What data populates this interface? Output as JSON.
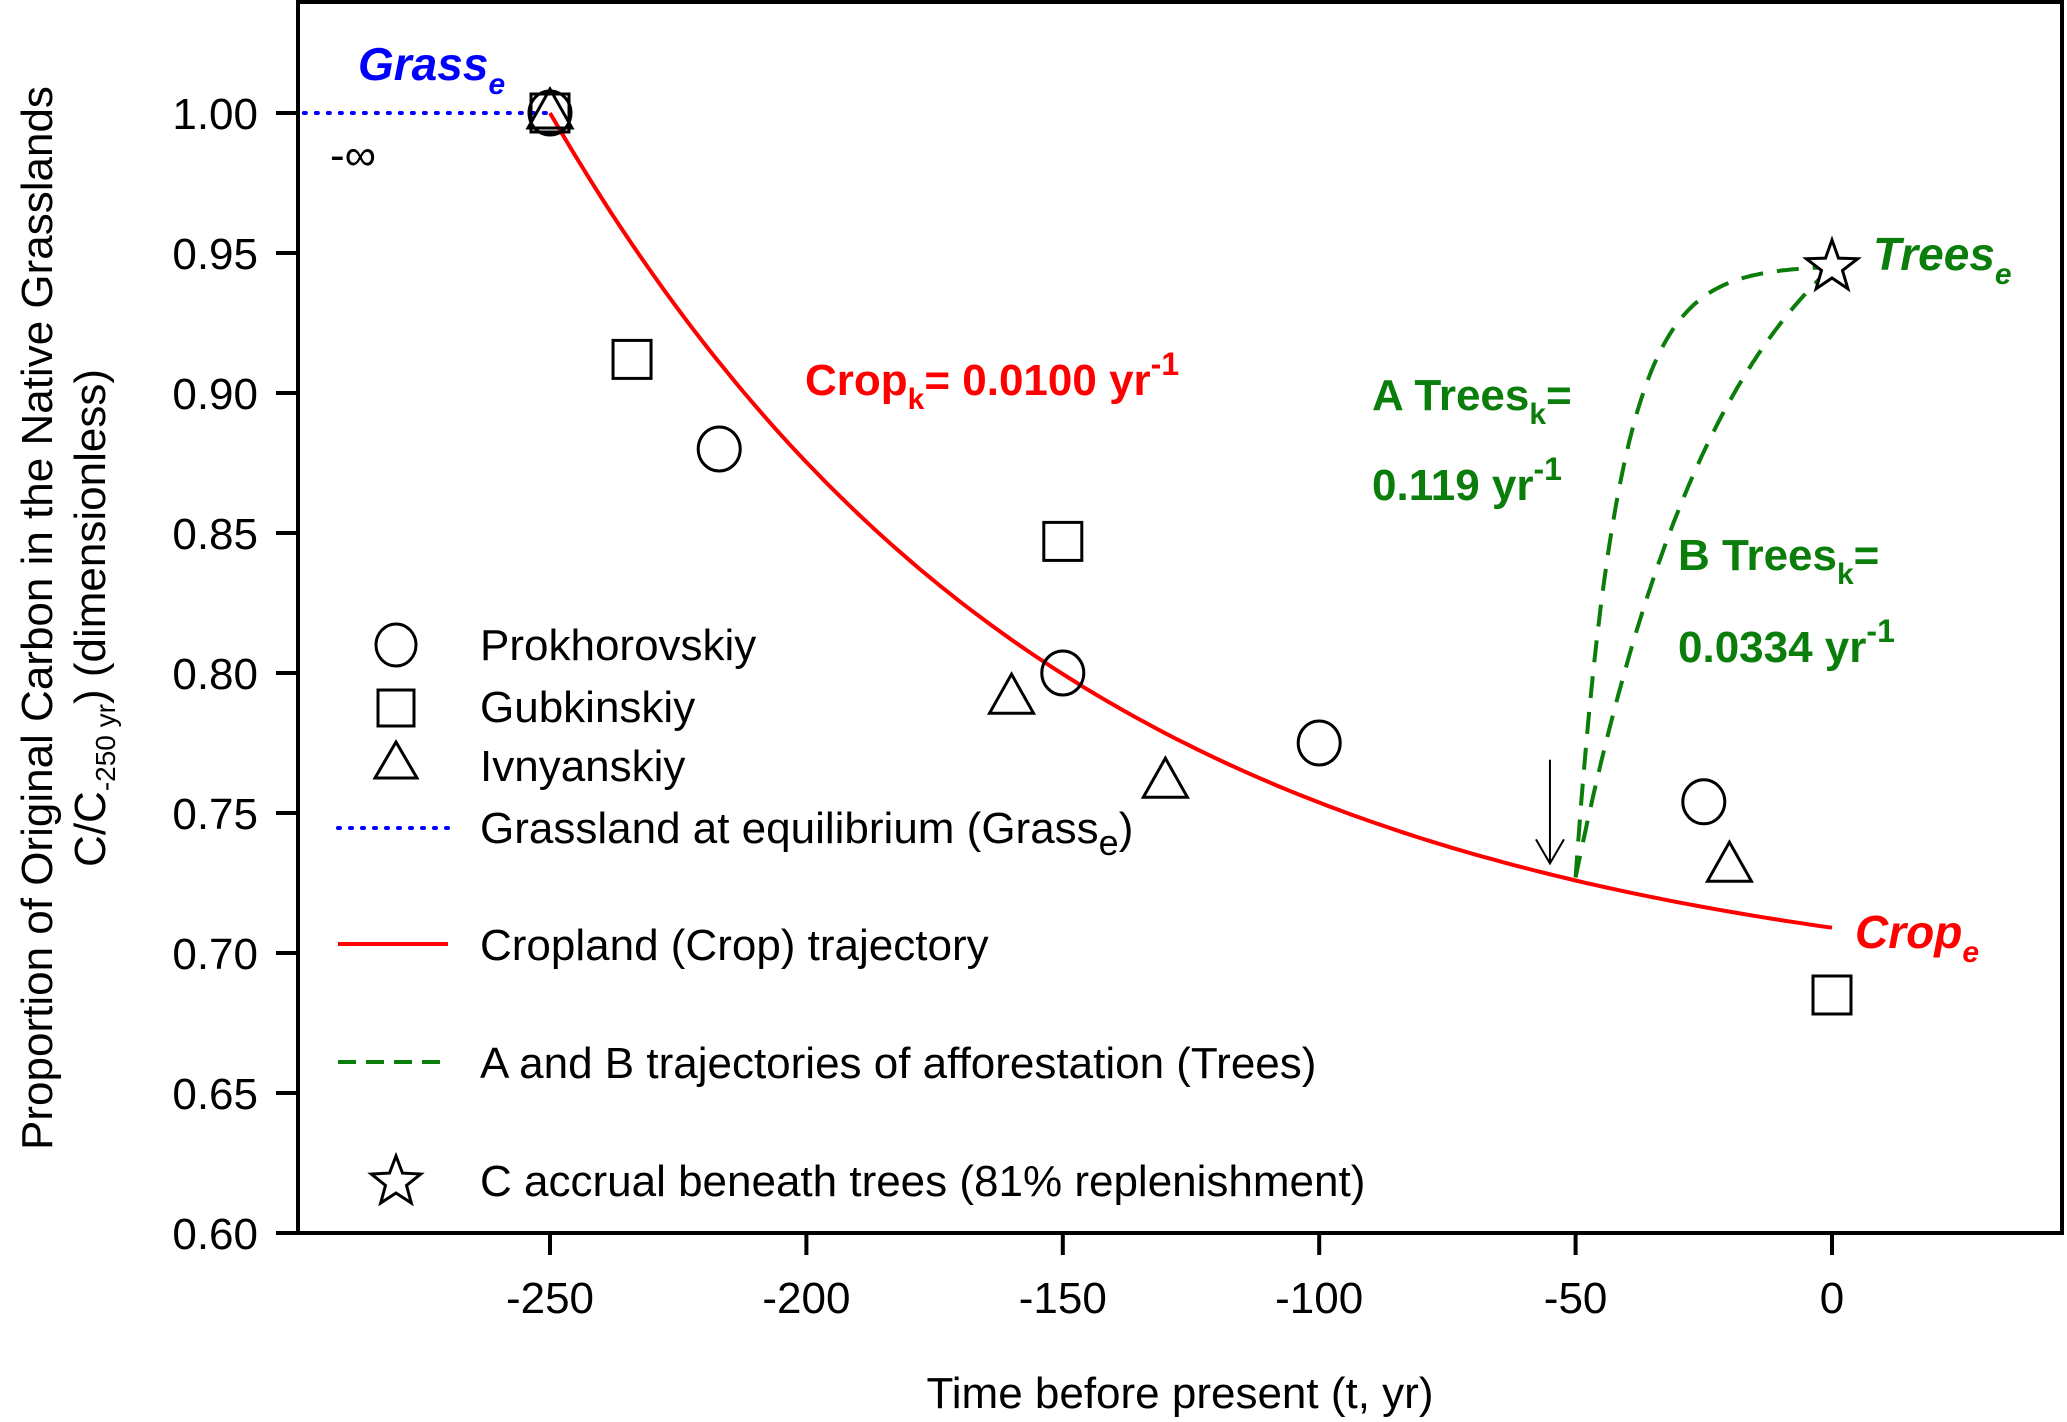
{
  "chart_data": {
    "type": "scatter",
    "title": "",
    "xlabel": "Time before present (t, yr)",
    "ylabel_line1": "Proportion of Original Carbon in the Native Grasslands",
    "ylabel_line2_prefix": "C/C",
    "ylabel_line2_sub": "-250 yr",
    "ylabel_line2_suffix": ") (dimensionless)",
    "xlim": [
      -298,
      34
    ],
    "ylim": [
      0.6,
      1.03
    ],
    "xticks": [
      -250,
      -200,
      -150,
      -100,
      -50,
      0
    ],
    "xtick_labels": [
      "-250",
      "-200",
      "-150",
      "-100",
      "-50",
      "0"
    ],
    "yticks": [
      0.6,
      0.65,
      0.7,
      0.75,
      0.8,
      0.85,
      0.9,
      0.95,
      1.0
    ],
    "ytick_labels": [
      "0.60",
      "0.65",
      "0.70",
      "0.75",
      "0.80",
      "0.85",
      "0.90",
      "0.95",
      "1.00"
    ],
    "grid": false,
    "colors": {
      "crop": "#ff0000",
      "trees": "#0a7d0a",
      "grass": "#0000ff",
      "markers": "#000000"
    },
    "series": [
      {
        "name": "Prokhorovskiy",
        "marker": "circle",
        "points": [
          [
            -250,
            1.0
          ],
          [
            -217,
            0.88
          ],
          [
            -150,
            0.8
          ],
          [
            -100,
            0.775
          ],
          [
            -25,
            0.754
          ]
        ]
      },
      {
        "name": "Gubkinskiy",
        "marker": "square",
        "points": [
          [
            -250,
            1.0
          ],
          [
            -234,
            0.912
          ],
          [
            -150,
            0.847
          ],
          [
            0,
            0.685
          ]
        ]
      },
      {
        "name": "Ivnyanskiy",
        "marker": "triangle",
        "points": [
          [
            -250,
            1.0
          ],
          [
            -160,
            0.791
          ],
          [
            -130,
            0.761
          ],
          [
            -20,
            0.731
          ]
        ]
      },
      {
        "name": "C accrual beneath trees (81% replenishment)",
        "marker": "star",
        "points": [
          [
            0,
            0.945
          ]
        ]
      }
    ],
    "lines": {
      "grassland_equilibrium": {
        "name": "Grassland at equilibrium (Grass_e)",
        "style": "dotted",
        "y": 1.0,
        "x_from": -298,
        "x_to": -250
      },
      "cropland": {
        "name": "Cropland (Crop) trajectory",
        "style": "solid",
        "model": "exponential decay",
        "k": 0.01,
        "start": [
          -250,
          1.0
        ],
        "asymptote": 0.683,
        "x_to": 0
      },
      "trees_A": {
        "name": "A trajectory of afforestation",
        "style": "dashed",
        "k": 0.119,
        "start": [
          -50,
          0.727
        ],
        "end": [
          0,
          0.945
        ]
      },
      "trees_B": {
        "name": "B trajectory of afforestation",
        "style": "dashed",
        "k": 0.0334,
        "start": [
          -50,
          0.727
        ],
        "end": [
          0,
          0.945
        ]
      }
    },
    "arrow": {
      "x": -55,
      "y_from": 0.769,
      "y_to": 0.732
    },
    "legend": {
      "placement": "center-left",
      "entries": [
        {
          "label": "Prokhorovskiy",
          "symbol": "circle"
        },
        {
          "label": "Gubkinskiy",
          "symbol": "square"
        },
        {
          "label": "Ivnyanskiy",
          "symbol": "triangle"
        },
        {
          "label_main": "Grassland at equilibrium (Grass",
          "label_sub": "e",
          "label_end": ")",
          "symbol": "dotted-blue"
        },
        {
          "label": "Cropland (Crop) trajectory",
          "symbol": "solid-red"
        },
        {
          "label": "A and B trajectories of afforestation (Trees)",
          "symbol": "dashed-green"
        },
        {
          "label": "C accrual beneath trees (81% replenishment)",
          "symbol": "star"
        }
      ]
    },
    "annotations": {
      "grass_e": {
        "main": "Grass",
        "sub": "e"
      },
      "neg_infinity": "-∞",
      "crop_k": {
        "main": "Crop",
        "sub": "k",
        "rest": "= 0.0100 yr",
        "sup": "-1"
      },
      "crop_e": {
        "main": "Crop",
        "sub": "e"
      },
      "trees_e": {
        "main": "Trees",
        "sub": "e"
      },
      "trees_a_line1": {
        "main": "A Trees",
        "sub": "k",
        "rest": "="
      },
      "trees_a_line2": {
        "main": "0.119 yr",
        "sup": "-1"
      },
      "trees_b_line1": {
        "main": "B Trees",
        "sub": "k",
        "rest": "="
      },
      "trees_b_line2": {
        "main": "0.0334 yr",
        "sup": "-1"
      }
    }
  }
}
